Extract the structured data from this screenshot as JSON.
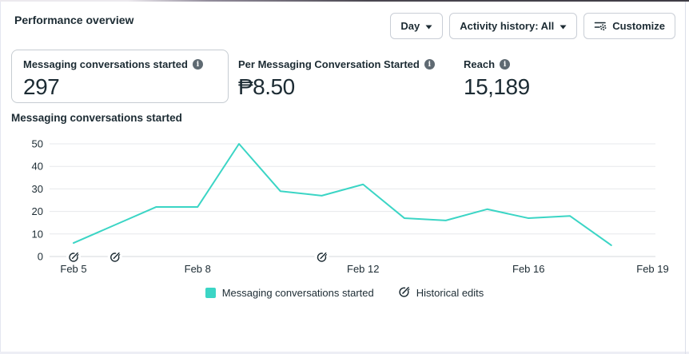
{
  "header": {
    "title": "Performance overview",
    "controls": {
      "day_label": "Day",
      "activity_label": "Activity history: All",
      "customize_label": "Customize"
    }
  },
  "metrics": [
    {
      "label": "Messaging conversations started",
      "value": "297"
    },
    {
      "label": "Per Messaging Conversation Started",
      "value": "₱8.50"
    },
    {
      "label": "Reach",
      "value": "15,189"
    }
  ],
  "chart_section_title": "Messaging conversations started",
  "chart_data": {
    "type": "line",
    "title": "Messaging conversations started",
    "x": [
      "Feb 5",
      "Feb 6",
      "Feb 7",
      "Feb 8",
      "Feb 9",
      "Feb 10",
      "Feb 11",
      "Feb 12",
      "Feb 13",
      "Feb 14",
      "Feb 15",
      "Feb 16",
      "Feb 17",
      "Feb 18"
    ],
    "series": [
      {
        "name": "Messaging conversations started",
        "values": [
          6,
          14,
          22,
          22,
          50,
          29,
          27,
          32,
          17,
          16,
          21,
          17,
          18,
          5
        ],
        "color": "#3BD5C5"
      }
    ],
    "ylim": [
      0,
      50
    ],
    "yticks": [
      0,
      10,
      20,
      30,
      40,
      50
    ],
    "x_tick_labels": [
      "Feb 5",
      "Feb 8",
      "Feb 12",
      "Feb 16",
      "Feb 19"
    ],
    "x_tick_indices": [
      0,
      3,
      7,
      11,
      14
    ],
    "historical_edit_indices": [
      0,
      1,
      6
    ],
    "grid": "horizontal",
    "legend_position": "bottom"
  },
  "legend": {
    "series_label": "Messaging conversations started",
    "edits_label": "Historical edits"
  },
  "colors": {
    "accent_teal": "#3BD5C5",
    "text_dark": "#1c2b33",
    "grid": "#e7e8ec",
    "axis_line": "#d6d9dd",
    "button_border": "#c9ced6"
  }
}
